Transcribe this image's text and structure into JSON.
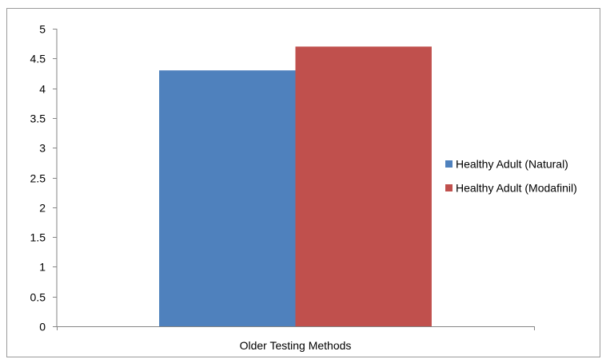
{
  "chart_data": {
    "type": "bar",
    "title": "",
    "xlabel": "",
    "ylabel": "",
    "categories": [
      "Older Testing Methods"
    ],
    "series": [
      {
        "name": "Healthy Adult (Natural)",
        "values": [
          4.3
        ],
        "color": "#4f81bd"
      },
      {
        "name": "Healthy Adult (Modafinil)",
        "values": [
          4.7
        ],
        "color": "#c0504d"
      }
    ],
    "ylim": [
      0,
      5
    ],
    "yticks": [
      "0",
      "0.5",
      "1",
      "1.5",
      "2",
      "2.5",
      "3",
      "3.5",
      "4",
      "4.5",
      "5"
    ],
    "grid": false,
    "legend_position": "right"
  }
}
